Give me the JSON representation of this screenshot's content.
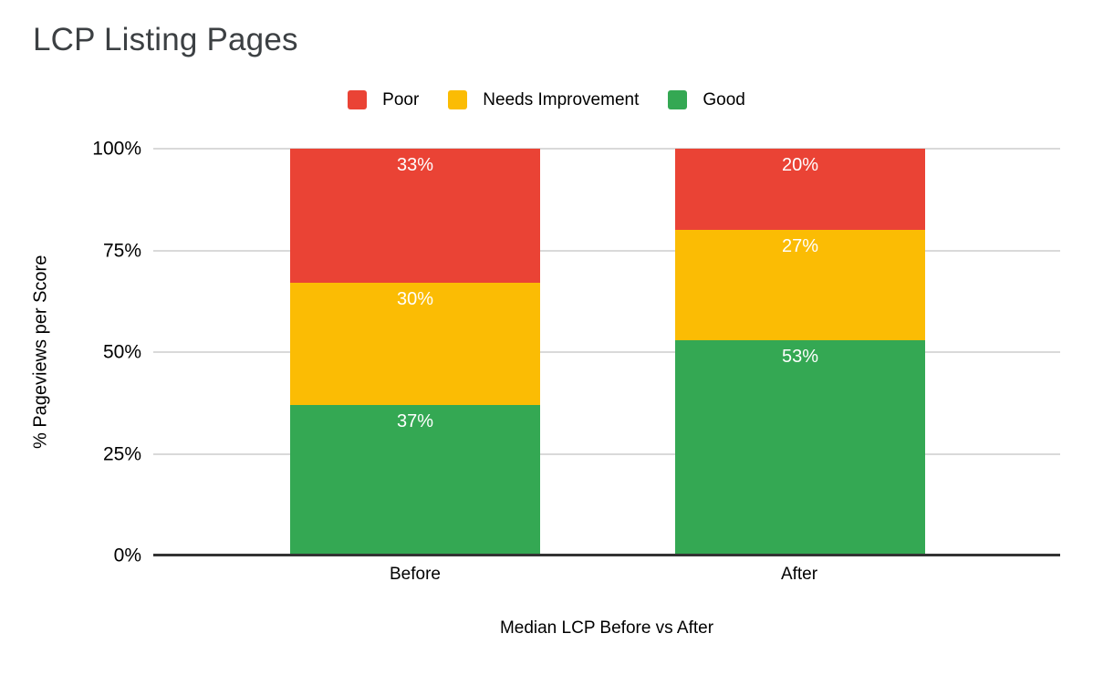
{
  "chart_data": {
    "type": "bar",
    "stacked": true,
    "title": "LCP Listing Pages",
    "categories": [
      "Before",
      "After"
    ],
    "series": [
      {
        "name": "Poor",
        "color": "#EA4335",
        "values": [
          33,
          20
        ],
        "labels": [
          "33%",
          "20%"
        ]
      },
      {
        "name": "Needs Improvement",
        "color": "#FBBC04",
        "values": [
          30,
          27
        ],
        "labels": [
          "30%",
          "27%"
        ]
      },
      {
        "name": "Good",
        "color": "#34A853",
        "values": [
          37,
          53
        ],
        "labels": [
          "37%",
          "53%"
        ]
      }
    ],
    "xlabel": "Median LCP Before vs After",
    "ylabel": "% Pageviews per Score",
    "yticks": [
      "0%",
      "25%",
      "50%",
      "75%",
      "100%"
    ],
    "ylim": [
      0,
      100
    ],
    "grid": true,
    "legend_position": "top",
    "value_label_color": "#FFFFFF",
    "gridline_color": "#D9D9D9",
    "axis_line_color": "#333333",
    "title_color": "#3C4043"
  }
}
